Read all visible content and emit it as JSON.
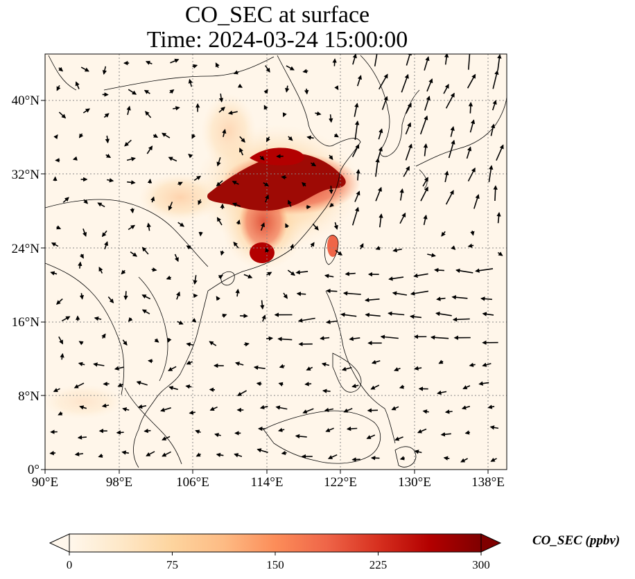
{
  "map": {
    "title_line1": "CO_SEC at surface",
    "title_line2": "Time: 2024-03-24 15:00:00",
    "extent": {
      "lon_min": 90,
      "lon_max": 140,
      "lat_min": 0,
      "lat_max": 45
    },
    "lon_ticks": [
      90,
      98,
      106,
      114,
      122,
      130,
      138
    ],
    "lon_tick_labels": [
      "90°E",
      "98°E",
      "106°E",
      "114°E",
      "122°E",
      "130°E",
      "138°E"
    ],
    "lat_ticks": [
      0,
      8,
      16,
      24,
      32,
      40
    ],
    "lat_tick_labels": [
      "0°",
      "8°N",
      "16°N",
      "24°N",
      "32°N",
      "40°N"
    ],
    "gridlines": true,
    "wind_vectors_shown": true,
    "coastlines_shown": true
  },
  "colorbar": {
    "label": "CO_SEC (ppbv)",
    "colormap": "OrRd",
    "min": 0,
    "max": 300,
    "ticks": [
      0,
      75,
      150,
      225,
      300
    ],
    "tick_labels": [
      "0",
      "75",
      "150",
      "225",
      "300"
    ],
    "extend": "both",
    "colors": [
      "#fff7ec",
      "#fee8c8",
      "#fdd49e",
      "#fdbb84",
      "#fc8d59",
      "#ef6548",
      "#d7301f",
      "#b30000",
      "#7f0000"
    ]
  }
}
